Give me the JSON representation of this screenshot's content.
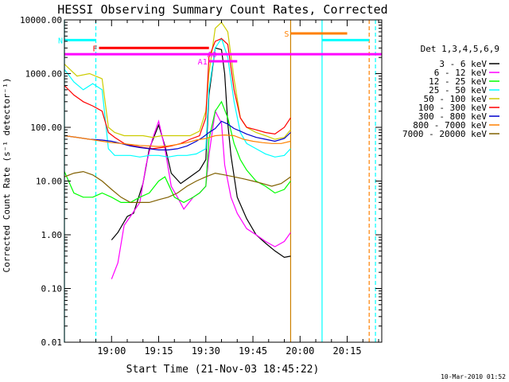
{
  "chart_data": {
    "type": "line",
    "title": "HESSI Observing Summary Count Rates, Corrected",
    "xlabel": "Start Time (21-Nov-03 18:45:22)",
    "ylabel": "Corrected Count Rate (s⁻¹ detector⁻¹)",
    "x_tick_labels": [
      "19:00",
      "19:15",
      "19:30",
      "19:45",
      "20:00",
      "20:15"
    ],
    "x_ticks_min": [
      15,
      30,
      45,
      60,
      75,
      90
    ],
    "y_tick_labels": [
      "0.01",
      "0.10",
      "1.00",
      "10.00",
      "100.00",
      "1000.00",
      "10000.00"
    ],
    "yscale": "log",
    "ylim": [
      0.01,
      10000
    ],
    "xlim_min": [
      0,
      101
    ],
    "legend_title": "Det 1,3,4,5,6,9",
    "legend_placement": "right",
    "timestamp": "10-Mar-2010 01:52",
    "series": [
      {
        "name": "3 - 6 keV",
        "color": "#000000",
        "points": [
          [
            15,
            0.8
          ],
          [
            17,
            1.1
          ],
          [
            20,
            2.2
          ],
          [
            22,
            2.5
          ],
          [
            25,
            9
          ],
          [
            27,
            40
          ],
          [
            30,
            110
          ],
          [
            32,
            45
          ],
          [
            34,
            14
          ],
          [
            37,
            9
          ],
          [
            40,
            12
          ],
          [
            43,
            16
          ],
          [
            45,
            25
          ],
          [
            46,
            400
          ],
          [
            48,
            3000
          ],
          [
            50,
            2800
          ],
          [
            51,
            1000
          ],
          [
            52,
            120
          ],
          [
            53,
            30
          ],
          [
            55,
            5
          ],
          [
            58,
            2
          ],
          [
            61,
            1
          ],
          [
            64,
            0.7
          ],
          [
            67,
            0.5
          ],
          [
            70,
            0.38
          ],
          [
            72,
            0.4
          ]
        ]
      },
      {
        "name": "6 - 12 keV",
        "color": "#ff00ff",
        "points": [
          [
            15,
            0.15
          ],
          [
            17,
            0.3
          ],
          [
            19,
            1.5
          ],
          [
            21,
            2.2
          ],
          [
            24,
            4
          ],
          [
            26,
            20
          ],
          [
            28,
            60
          ],
          [
            30,
            130
          ],
          [
            32,
            40
          ],
          [
            34,
            8
          ],
          [
            36,
            5
          ],
          [
            38,
            3
          ],
          [
            41,
            5
          ],
          [
            43,
            6
          ],
          [
            45,
            8
          ],
          [
            46,
            30
          ],
          [
            48,
            200
          ],
          [
            50,
            120
          ],
          [
            51,
            20
          ],
          [
            53,
            5
          ],
          [
            55,
            2.5
          ],
          [
            58,
            1.3
          ],
          [
            61,
            1
          ],
          [
            64,
            0.75
          ],
          [
            67,
            0.6
          ],
          [
            70,
            0.75
          ],
          [
            72,
            1.1
          ]
        ]
      },
      {
        "name": "12 - 25 keV",
        "color": "#00ff00",
        "points": [
          [
            0,
            15
          ],
          [
            3,
            6
          ],
          [
            6,
            5
          ],
          [
            9,
            5
          ],
          [
            12,
            6
          ],
          [
            15,
            5
          ],
          [
            18,
            4
          ],
          [
            21,
            4
          ],
          [
            24,
            5
          ],
          [
            27,
            6
          ],
          [
            30,
            10
          ],
          [
            32,
            12
          ],
          [
            35,
            5
          ],
          [
            38,
            4
          ],
          [
            41,
            5
          ],
          [
            43,
            6
          ],
          [
            45,
            8
          ],
          [
            46,
            60
          ],
          [
            48,
            200
          ],
          [
            50,
            300
          ],
          [
            52,
            150
          ],
          [
            54,
            50
          ],
          [
            56,
            25
          ],
          [
            58,
            16
          ],
          [
            61,
            10
          ],
          [
            64,
            8
          ],
          [
            67,
            6
          ],
          [
            70,
            7
          ],
          [
            72,
            10
          ]
        ]
      },
      {
        "name": "25 - 50 keV",
        "color": "#00ffff",
        "points": [
          [
            0,
            1200
          ],
          [
            3,
            700
          ],
          [
            6,
            500
          ],
          [
            9,
            650
          ],
          [
            12,
            500
          ],
          [
            14,
            40
          ],
          [
            16,
            30
          ],
          [
            18,
            30
          ],
          [
            21,
            30
          ],
          [
            24,
            28
          ],
          [
            27,
            30
          ],
          [
            30,
            30
          ],
          [
            33,
            28
          ],
          [
            36,
            30
          ],
          [
            39,
            30
          ],
          [
            42,
            32
          ],
          [
            45,
            40
          ],
          [
            46,
            500
          ],
          [
            48,
            3000
          ],
          [
            50,
            4500
          ],
          [
            52,
            2000
          ],
          [
            54,
            300
          ],
          [
            56,
            80
          ],
          [
            58,
            50
          ],
          [
            61,
            40
          ],
          [
            64,
            32
          ],
          [
            67,
            28
          ],
          [
            70,
            30
          ],
          [
            72,
            40
          ]
        ]
      },
      {
        "name": "50 - 100 keV",
        "color": "#cccc00",
        "points": [
          [
            0,
            1500
          ],
          [
            4,
            900
          ],
          [
            8,
            1000
          ],
          [
            12,
            800
          ],
          [
            14,
            100
          ],
          [
            16,
            80
          ],
          [
            19,
            70
          ],
          [
            22,
            70
          ],
          [
            25,
            70
          ],
          [
            28,
            65
          ],
          [
            31,
            70
          ],
          [
            34,
            70
          ],
          [
            37,
            70
          ],
          [
            40,
            70
          ],
          [
            43,
            85
          ],
          [
            45,
            200
          ],
          [
            46,
            1000
          ],
          [
            48,
            7000
          ],
          [
            50,
            9000
          ],
          [
            52,
            6000
          ],
          [
            54,
            800
          ],
          [
            56,
            150
          ],
          [
            58,
            100
          ],
          [
            61,
            80
          ],
          [
            64,
            70
          ],
          [
            67,
            60
          ],
          [
            70,
            65
          ],
          [
            72,
            90
          ]
        ]
      },
      {
        "name": "100 - 300 keV",
        "color": "#ff0000",
        "points": [
          [
            0,
            600
          ],
          [
            3,
            400
          ],
          [
            6,
            300
          ],
          [
            9,
            250
          ],
          [
            12,
            200
          ],
          [
            14,
            80
          ],
          [
            16,
            65
          ],
          [
            19,
            50
          ],
          [
            22,
            45
          ],
          [
            25,
            42
          ],
          [
            28,
            40
          ],
          [
            31,
            42
          ],
          [
            34,
            45
          ],
          [
            37,
            50
          ],
          [
            40,
            60
          ],
          [
            43,
            70
          ],
          [
            45,
            150
          ],
          [
            46,
            2000
          ],
          [
            48,
            4000
          ],
          [
            50,
            4500
          ],
          [
            52,
            3500
          ],
          [
            54,
            500
          ],
          [
            56,
            150
          ],
          [
            58,
            100
          ],
          [
            61,
            90
          ],
          [
            64,
            80
          ],
          [
            67,
            75
          ],
          [
            70,
            100
          ],
          [
            72,
            150
          ]
        ]
      },
      {
        "name": "300 - 800 keV",
        "color": "#0000cc",
        "points": [
          [
            0,
            70
          ],
          [
            4,
            65
          ],
          [
            8,
            60
          ],
          [
            12,
            58
          ],
          [
            15,
            55
          ],
          [
            18,
            50
          ],
          [
            21,
            45
          ],
          [
            24,
            42
          ],
          [
            27,
            40
          ],
          [
            30,
            38
          ],
          [
            33,
            38
          ],
          [
            36,
            40
          ],
          [
            39,
            45
          ],
          [
            42,
            55
          ],
          [
            44,
            65
          ],
          [
            46,
            80
          ],
          [
            48,
            95
          ],
          [
            50,
            130
          ],
          [
            52,
            115
          ],
          [
            54,
            95
          ],
          [
            56,
            85
          ],
          [
            58,
            75
          ],
          [
            61,
            65
          ],
          [
            64,
            60
          ],
          [
            67,
            55
          ],
          [
            70,
            62
          ],
          [
            72,
            80
          ]
        ]
      },
      {
        "name": "800 - 7000 keV",
        "color": "#ff8000",
        "points": [
          [
            0,
            70
          ],
          [
            4,
            65
          ],
          [
            8,
            60
          ],
          [
            12,
            55
          ],
          [
            15,
            52
          ],
          [
            18,
            50
          ],
          [
            21,
            48
          ],
          [
            24,
            46
          ],
          [
            27,
            45
          ],
          [
            30,
            44
          ],
          [
            33,
            45
          ],
          [
            36,
            48
          ],
          [
            39,
            52
          ],
          [
            42,
            58
          ],
          [
            45,
            62
          ],
          [
            48,
            70
          ],
          [
            51,
            72
          ],
          [
            54,
            70
          ],
          [
            57,
            60
          ],
          [
            60,
            55
          ],
          [
            63,
            52
          ],
          [
            66,
            50
          ],
          [
            69,
            50
          ],
          [
            72,
            55
          ]
        ]
      },
      {
        "name": "7000 - 20000 keV",
        "color": "#806000",
        "points": [
          [
            0,
            12
          ],
          [
            3,
            14
          ],
          [
            6,
            15
          ],
          [
            9,
            13
          ],
          [
            12,
            10
          ],
          [
            15,
            7
          ],
          [
            18,
            5
          ],
          [
            21,
            4
          ],
          [
            24,
            4
          ],
          [
            27,
            4
          ],
          [
            30,
            4.5
          ],
          [
            33,
            5
          ],
          [
            36,
            6
          ],
          [
            39,
            8
          ],
          [
            42,
            10
          ],
          [
            45,
            12
          ],
          [
            48,
            14
          ],
          [
            51,
            13
          ],
          [
            54,
            12
          ],
          [
            57,
            11
          ],
          [
            60,
            10
          ],
          [
            63,
            9
          ],
          [
            66,
            8
          ],
          [
            69,
            9
          ],
          [
            72,
            12
          ]
        ]
      }
    ],
    "flags": [
      {
        "label": "N",
        "color": "#00ffff",
        "start": 0,
        "end": 10,
        "level": 4200
      },
      {
        "label": "F",
        "color": "#ff0000",
        "start": 11,
        "end": 46,
        "level": 3000
      },
      {
        "label": "S",
        "color": "#ff8000",
        "start": 72,
        "end": 90,
        "level": 5600
      },
      {
        "label": "",
        "color": "#00ffff",
        "start": 82,
        "end": 97,
        "level": 4200
      },
      {
        "label": "",
        "color": "#ff00ff",
        "start": 0,
        "end": 101,
        "level": 2300
      },
      {
        "label": "A1",
        "color": "#ff00ff",
        "start": 46,
        "end": 55,
        "level": 1700
      },
      {
        "label": "A0",
        "color": "#ff00ff",
        "start": 49,
        "end": 49,
        "level": 2300
      }
    ],
    "vlines": [
      {
        "color": "#00ffff",
        "x": 0,
        "style": "solid"
      },
      {
        "color": "#00ffff",
        "x": 10,
        "style": "dashed"
      },
      {
        "color": "#cc8000",
        "x": 72,
        "style": "solid"
      },
      {
        "color": "#00ffff",
        "x": 82,
        "style": "solid"
      },
      {
        "color": "#ff8000",
        "x": 97,
        "style": "dashed"
      },
      {
        "color": "#00ffff",
        "x": 99,
        "style": "dashed"
      }
    ]
  }
}
